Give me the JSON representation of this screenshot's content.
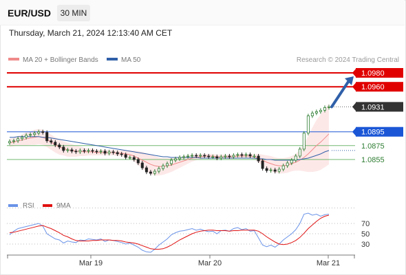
{
  "header": {
    "symbol": "EUR/USD",
    "timeframe": "30 MIN",
    "datetime": "Thursday, March 21, 2024 12:13:40 AM CET"
  },
  "colors": {
    "price_up": "#2e7d32",
    "price_down": "#222222",
    "ma20": "#f08a8a",
    "bands": "#fde4e4",
    "ma50": "#2f5fa8",
    "resistance": "#e00000",
    "support_blue": "#1a56d6",
    "support_green": "#70b870",
    "arrow": "#2f5fa8",
    "rsi": "#6a93e8",
    "rsi_ma": "#e01010",
    "current_label": "#333333"
  },
  "legend": {
    "ma20_label": "MA 20 + Bollinger Bands",
    "ma50_label": "MA 50",
    "source": "Research © 2024 Trading Central"
  },
  "rsi_legend": {
    "rsi_label": "RSI",
    "ma_label": "9MA"
  },
  "chart_data": [
    {
      "type": "line",
      "x_ticks": [
        "Mar 19",
        "Mar 20",
        "Mar 21"
      ],
      "ylim": [
        1.082,
        1.1
      ],
      "levels": [
        {
          "value": 1.098,
          "label": "1.0980",
          "style": "resistance"
        },
        {
          "value": 1.096,
          "label": "1.0960",
          "style": "resistance"
        },
        {
          "value": 1.0931,
          "label": "1.0931",
          "style": "current"
        },
        {
          "value": 1.0895,
          "label": "1.0895",
          "style": "support_blue"
        },
        {
          "value": 1.0875,
          "label": "1.0875",
          "style": "support_green"
        },
        {
          "value": 1.0855,
          "label": "1.0855",
          "style": "support_green"
        }
      ],
      "close": [
        1.0881,
        1.0882,
        1.0885,
        1.0887,
        1.089,
        1.0891,
        1.0893,
        1.0895,
        1.0894,
        1.0882,
        1.088,
        1.0876,
        1.0873,
        1.0868,
        1.0869,
        1.0867,
        1.0866,
        1.0868,
        1.0867,
        1.0868,
        1.0867,
        1.0866,
        1.0867,
        1.0864,
        1.0866,
        1.0865,
        1.0863,
        1.0862,
        1.0858,
        1.0858,
        1.0855,
        1.085,
        1.0843,
        1.0837,
        1.0835,
        1.0838,
        1.0842,
        1.0846,
        1.0849,
        1.0854,
        1.0856,
        1.0858,
        1.0859,
        1.086,
        1.0861,
        1.086,
        1.0861,
        1.086,
        1.0859,
        1.0859,
        1.0857,
        1.0859,
        1.086,
        1.0859,
        1.0861,
        1.0862,
        1.0861,
        1.0862,
        1.086,
        1.086,
        1.0853,
        1.0842,
        1.0839,
        1.084,
        1.0838,
        1.0841,
        1.0846,
        1.085,
        1.0854,
        1.086,
        1.087,
        1.0893,
        1.0918,
        1.0922,
        1.0924,
        1.0926,
        1.093,
        1.0931
      ],
      "ma20": [
        1.0879,
        1.088,
        1.0882,
        1.0883,
        1.0885,
        1.0886,
        1.0887,
        1.0888,
        1.0887,
        1.0884,
        1.088,
        1.0876,
        1.0873,
        1.0871,
        1.0869,
        1.0868,
        1.0867,
        1.0867,
        1.0866,
        1.0866,
        1.0866,
        1.0865,
        1.0865,
        1.0865,
        1.0865,
        1.0865,
        1.0864,
        1.0864,
        1.0863,
        1.0862,
        1.086,
        1.0857,
        1.0854,
        1.0851,
        1.0848,
        1.0846,
        1.0845,
        1.0845,
        1.0846,
        1.0847,
        1.0849,
        1.0851,
        1.0853,
        1.0855,
        1.0857,
        1.0858,
        1.0859,
        1.086,
        1.086,
        1.086,
        1.0859,
        1.0859,
        1.0859,
        1.0859,
        1.0859,
        1.086,
        1.086,
        1.086,
        1.086,
        1.0859,
        1.0857,
        1.0854,
        1.0851,
        1.0849,
        1.0847,
        1.0846,
        1.0846,
        1.0847,
        1.0849,
        1.0851,
        1.0854,
        1.0858,
        1.0863,
        1.0869,
        1.0875,
        1.088,
        1.0886,
        1.0892
      ],
      "band_width": [
        0.0006,
        0.0006,
        0.0007,
        0.0008,
        0.001,
        0.001,
        0.0011,
        0.0011,
        0.0011,
        0.0011,
        0.0011,
        0.0011,
        0.0011,
        0.001,
        0.001,
        0.0009,
        0.0008,
        0.0007,
        0.0006,
        0.0005,
        0.0005,
        0.0004,
        0.0004,
        0.0004,
        0.0004,
        0.0004,
        0.0004,
        0.0004,
        0.0005,
        0.0006,
        0.0008,
        0.001,
        0.0012,
        0.0013,
        0.0014,
        0.0014,
        0.0013,
        0.0012,
        0.0011,
        0.001,
        0.0009,
        0.0008,
        0.0007,
        0.0006,
        0.0005,
        0.0004,
        0.0004,
        0.0003,
        0.0003,
        0.0003,
        0.0003,
        0.0003,
        0.0003,
        0.0003,
        0.0003,
        0.0003,
        0.0003,
        0.0003,
        0.0003,
        0.0004,
        0.0006,
        0.0008,
        0.001,
        0.0011,
        0.0011,
        0.0011,
        0.0011,
        0.0011,
        0.0011,
        0.0012,
        0.0015,
        0.002,
        0.0026,
        0.0032,
        0.0037,
        0.004,
        0.0042,
        0.0044
      ],
      "ma50": [
        1.0887,
        1.0887,
        1.0888,
        1.0888,
        1.0888,
        1.0888,
        1.0888,
        1.0888,
        1.0887,
        1.0887,
        1.0886,
        1.0885,
        1.0884,
        1.0883,
        1.0882,
        1.0881,
        1.088,
        1.0879,
        1.0878,
        1.0877,
        1.0876,
        1.0875,
        1.0874,
        1.0873,
        1.0872,
        1.0871,
        1.087,
        1.0869,
        1.0868,
        1.0867,
        1.0866,
        1.0865,
        1.0864,
        1.0863,
        1.0862,
        1.0861,
        1.086,
        1.0859,
        1.0859,
        1.0858,
        1.0858,
        1.0858,
        1.0858,
        1.0858,
        1.0858,
        1.0858,
        1.0857,
        1.0857,
        1.0857,
        1.0857,
        1.0857,
        1.0857,
        1.0857,
        1.0857,
        1.0857,
        1.0857,
        1.0857,
        1.0857,
        1.0857,
        1.0857,
        1.0856,
        1.0856,
        1.0855,
        1.0855,
        1.0854,
        1.0854,
        1.0854,
        1.0854,
        1.0854,
        1.0854,
        1.0855,
        1.0856,
        1.0857,
        1.0859,
        1.0861,
        1.0863,
        1.0866,
        1.0868
      ],
      "forecast_arrow": {
        "from": 1.0931,
        "to": 1.0975
      }
    },
    {
      "type": "line",
      "ylim": [
        0,
        100
      ],
      "y_ticks": [
        70,
        50,
        30
      ],
      "rsi": [
        48,
        55,
        60,
        62,
        64,
        66,
        68,
        70,
        65,
        50,
        45,
        40,
        38,
        32,
        36,
        34,
        33,
        38,
        37,
        40,
        39,
        38,
        40,
        35,
        38,
        37,
        35,
        33,
        30,
        32,
        28,
        24,
        18,
        15,
        14,
        20,
        28,
        34,
        40,
        48,
        52,
        55,
        56,
        58,
        60,
        57,
        59,
        56,
        54,
        55,
        50,
        56,
        57,
        55,
        60,
        62,
        58,
        60,
        55,
        56,
        42,
        28,
        25,
        28,
        24,
        30,
        38,
        44,
        50,
        58,
        70,
        88,
        90,
        86,
        88,
        84,
        87,
        88
      ],
      "rsi_ma": [
        52,
        53,
        55,
        57,
        59,
        61,
        63,
        65,
        66,
        63,
        60,
        56,
        52,
        47,
        44,
        40,
        37,
        36,
        36,
        36,
        37,
        37,
        38,
        38,
        38,
        37,
        37,
        36,
        34,
        33,
        32,
        30,
        27,
        24,
        21,
        20,
        20,
        21,
        24,
        28,
        33,
        38,
        42,
        46,
        50,
        53,
        55,
        56,
        57,
        57,
        56,
        56,
        56,
        55,
        56,
        56,
        57,
        57,
        57,
        57,
        55,
        50,
        44,
        39,
        34,
        30,
        29,
        30,
        33,
        37,
        43,
        51,
        60,
        67,
        74,
        80,
        84,
        86
      ]
    }
  ]
}
